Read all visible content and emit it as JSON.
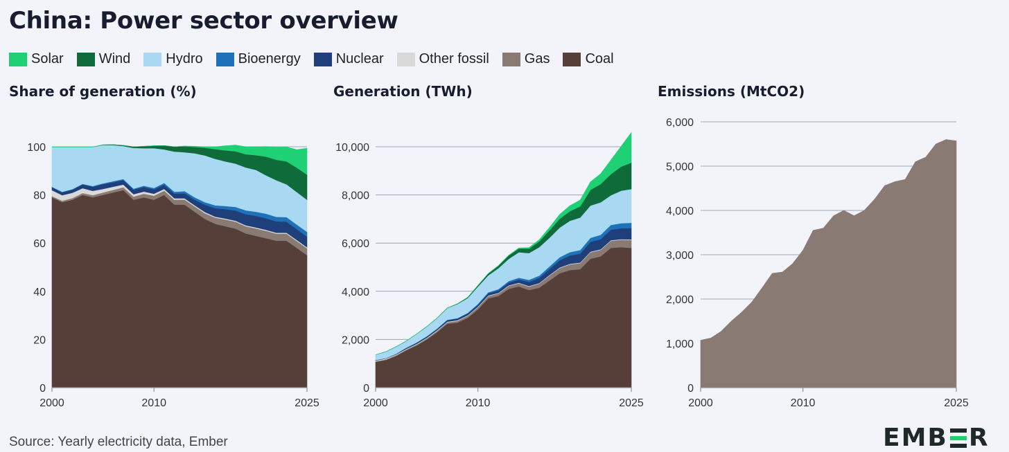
{
  "title": "China: Power sector overview",
  "legend": [
    {
      "label": "Solar",
      "color": "#1fd174"
    },
    {
      "label": "Wind",
      "color": "#0f6b3a"
    },
    {
      "label": "Hydro",
      "color": "#a8d8f2"
    },
    {
      "label": "Bioenergy",
      "color": "#1f72b8"
    },
    {
      "label": "Nuclear",
      "color": "#1e3f7a"
    },
    {
      "label": "Other fossil",
      "color": "#d9d9d9"
    },
    {
      "label": "Gas",
      "color": "#8a7a74"
    },
    {
      "label": "Coal",
      "color": "#553f38"
    }
  ],
  "panels": {
    "share_title": "Share of generation (%)",
    "gen_title": "Generation (TWh)",
    "em_title": "Emissions (MtCO2)"
  },
  "source": "Source: Yearly electricity data, Ember",
  "logo": {
    "left": "EMB",
    "right": "R"
  },
  "chart_data": [
    {
      "type": "area",
      "title": "Share of generation (%)",
      "x": [
        2000,
        2001,
        2002,
        2003,
        2004,
        2005,
        2006,
        2007,
        2008,
        2009,
        2010,
        2011,
        2012,
        2013,
        2014,
        2015,
        2016,
        2017,
        2018,
        2019,
        2020,
        2021,
        2022,
        2023,
        2024,
        2025
      ],
      "ylim": [
        0,
        100
      ],
      "yticks": [
        0,
        20,
        40,
        60,
        80,
        100
      ],
      "xticks": [
        2000,
        2010,
        2025
      ],
      "series": [
        {
          "name": "Coal",
          "values": [
            79,
            77,
            78,
            80,
            79,
            80,
            81,
            82,
            78,
            79,
            78,
            80,
            76,
            76,
            73,
            70,
            68,
            67,
            66,
            64,
            63,
            62,
            61,
            61,
            58,
            55
          ]
        },
        {
          "name": "Gas",
          "values": [
            0.5,
            0.6,
            0.7,
            0.8,
            0.9,
            1.0,
            1.1,
            1.2,
            1.3,
            1.5,
            1.7,
            1.8,
            2.0,
            2.1,
            2.2,
            2.4,
            2.6,
            2.8,
            2.9,
            3.0,
            3.1,
            3.1,
            2.9,
            2.9,
            2.9,
            2.9
          ]
        },
        {
          "name": "Other fossil",
          "values": [
            2.5,
            2.3,
            2.2,
            2.0,
            1.8,
            1.5,
            1.3,
            1.1,
            1.0,
            0.9,
            0.8,
            0.7,
            0.6,
            0.5,
            0.5,
            0.5,
            0.4,
            0.4,
            0.4,
            0.4,
            0.4,
            0.4,
            0.4,
            0.4,
            0.4,
            0.4
          ]
        },
        {
          "name": "Nuclear",
          "values": [
            1.2,
            1.2,
            1.3,
            1.6,
            1.7,
            2.0,
            1.9,
            1.9,
            1.9,
            1.9,
            1.8,
            1.8,
            1.9,
            2.1,
            2.3,
            3.0,
            3.5,
            3.9,
            4.2,
            4.6,
            4.8,
            4.8,
            4.7,
            4.6,
            4.5,
            4.4
          ]
        },
        {
          "name": "Bioenergy",
          "values": [
            0.2,
            0.2,
            0.2,
            0.2,
            0.3,
            0.3,
            0.4,
            0.4,
            0.4,
            0.5,
            0.6,
            0.7,
            0.8,
            0.9,
            1.0,
            1.1,
            1.2,
            1.3,
            1.5,
            1.6,
            1.7,
            1.9,
            1.9,
            1.9,
            1.9,
            2.0
          ]
        },
        {
          "name": "Hydro",
          "values": [
            16.5,
            18.6,
            17.5,
            15.3,
            16.2,
            15.9,
            15.0,
            13.7,
            16.9,
            15.6,
            16.5,
            13.9,
            16.7,
            16.1,
            18.3,
            19.4,
            19.3,
            18.5,
            18.0,
            17.8,
            17.4,
            15.9,
            15.2,
            13.6,
            13.5,
            13.3
          ]
        },
        {
          "name": "Wind",
          "values": [
            0,
            0,
            0,
            0,
            0,
            0.1,
            0.2,
            0.3,
            0.5,
            0.8,
            1.0,
            1.6,
            2.0,
            2.5,
            2.6,
            3.2,
            4.0,
            4.6,
            5.1,
            5.5,
            6.1,
            7.8,
            8.5,
            9.5,
            10.1,
            10.4
          ]
        },
        {
          "name": "Solar",
          "values": [
            0,
            0,
            0,
            0,
            0,
            0,
            0,
            0,
            0,
            0,
            0,
            0,
            0,
            0.1,
            0.3,
            0.4,
            1.0,
            1.9,
            2.6,
            3.1,
            3.5,
            4.2,
            5.2,
            6.0,
            7.5,
            11.0
          ]
        }
      ]
    },
    {
      "type": "area",
      "title": "Generation (TWh)",
      "x": [
        2000,
        2001,
        2002,
        2003,
        2004,
        2005,
        2006,
        2007,
        2008,
        2009,
        2010,
        2011,
        2012,
        2013,
        2014,
        2015,
        2016,
        2017,
        2018,
        2019,
        2020,
        2021,
        2022,
        2023,
        2024,
        2025
      ],
      "ylim": [
        0,
        11000
      ],
      "yticks": [
        0,
        2000,
        4000,
        6000,
        8000,
        10000
      ],
      "xticks": [
        2000,
        2010,
        2025
      ],
      "series": [
        {
          "name": "Coal",
          "values": [
            1070,
            1150,
            1320,
            1550,
            1750,
            2000,
            2300,
            2650,
            2700,
            2900,
            3250,
            3700,
            3800,
            4100,
            4200,
            4050,
            4150,
            4450,
            4750,
            4880,
            4920,
            5350,
            5450,
            5800,
            5830,
            5800
          ]
        },
        {
          "name": "Gas",
          "values": [
            20,
            20,
            25,
            30,
            35,
            40,
            50,
            60,
            70,
            80,
            90,
            100,
            110,
            120,
            130,
            145,
            170,
            200,
            215,
            235,
            250,
            270,
            270,
            295,
            310,
            330
          ]
        },
        {
          "name": "Other fossil",
          "values": [
            35,
            33,
            32,
            30,
            30,
            30,
            30,
            28,
            28,
            27,
            26,
            25,
            25,
            25,
            25,
            25,
            25,
            25,
            25,
            25,
            25,
            25,
            25,
            25,
            25,
            25
          ]
        },
        {
          "name": "Nuclear",
          "values": [
            17,
            17,
            25,
            43,
            50,
            53,
            55,
            62,
            68,
            70,
            74,
            87,
            98,
            112,
            133,
            171,
            213,
            248,
            295,
            348,
            366,
            408,
            418,
            435,
            451,
            467
          ]
        },
        {
          "name": "Bioenergy",
          "values": [
            3,
            3,
            4,
            5,
            8,
            10,
            15,
            18,
            20,
            25,
            35,
            45,
            55,
            65,
            75,
            85,
            95,
            110,
            130,
            140,
            150,
            165,
            180,
            200,
            210,
            220
          ]
        },
        {
          "name": "Hydro",
          "values": [
            220,
            270,
            290,
            280,
            350,
            400,
            430,
            480,
            585,
            615,
            720,
            700,
            870,
            920,
            1060,
            1110,
            1180,
            1190,
            1230,
            1300,
            1350,
            1340,
            1350,
            1230,
            1350,
            1400
          ]
        },
        {
          "name": "Wind",
          "values": [
            0,
            0,
            1,
            1,
            1,
            2,
            4,
            6,
            13,
            28,
            45,
            75,
            100,
            140,
            150,
            185,
            240,
            305,
            370,
            400,
            465,
            650,
            760,
            880,
            1000,
            1100
          ]
        },
        {
          "name": "Solar",
          "values": [
            0,
            0,
            0,
            0,
            0,
            0,
            0,
            0,
            0,
            0,
            1,
            3,
            6,
            9,
            25,
            40,
            70,
            118,
            178,
            225,
            260,
            330,
            425,
            580,
            840,
            1250
          ]
        }
      ]
    },
    {
      "type": "area",
      "title": "Emissions (MtCO2)",
      "x": [
        2000,
        2001,
        2002,
        2003,
        2004,
        2005,
        2006,
        2007,
        2008,
        2009,
        2010,
        2011,
        2012,
        2013,
        2014,
        2015,
        2016,
        2017,
        2018,
        2019,
        2020,
        2021,
        2022,
        2023,
        2024,
        2025
      ],
      "ylim": [
        0,
        6000
      ],
      "yticks": [
        0,
        1000,
        2000,
        3000,
        4000,
        5000,
        6000
      ],
      "xticks": [
        2000,
        2010,
        2025
      ],
      "series": [
        {
          "name": "Gas",
          "values": [
            1070,
            1120,
            1270,
            1500,
            1700,
            1930,
            2250,
            2580,
            2610,
            2800,
            3100,
            3550,
            3600,
            3880,
            4000,
            3880,
            4000,
            4250,
            4560,
            4650,
            4700,
            5100,
            5200,
            5500,
            5600,
            5570
          ]
        }
      ]
    }
  ]
}
